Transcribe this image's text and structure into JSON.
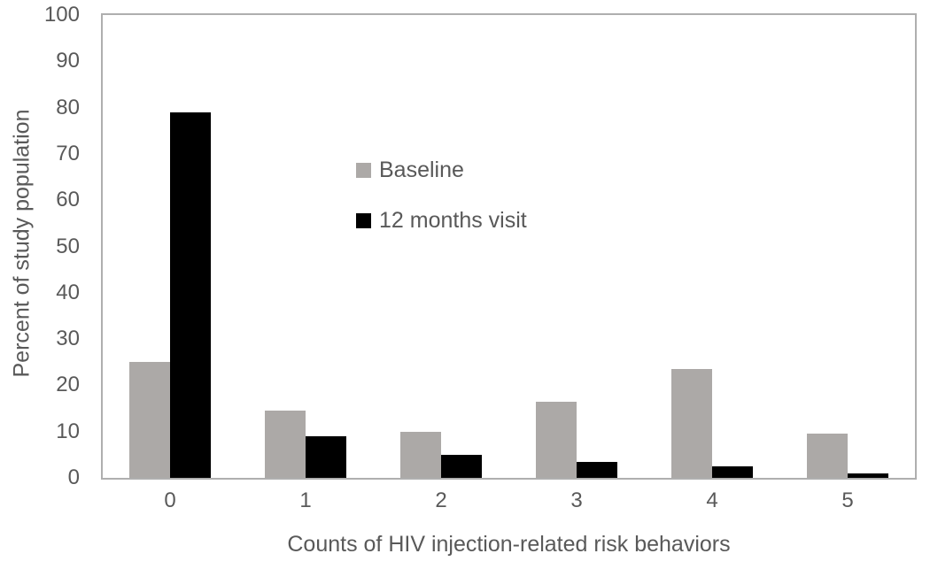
{
  "colors": {
    "text": "#595959",
    "axis_border": "#AFAFAF",
    "background": "#ffffff"
  },
  "chart_data": {
    "type": "bar",
    "title": "",
    "xlabel": "Counts of HIV injection-related risk behaviors",
    "ylabel": "Percent of study population",
    "categories": [
      "0",
      "1",
      "2",
      "3",
      "4",
      "5"
    ],
    "series": [
      {
        "name": "Baseline",
        "color": "#ACA9A7",
        "values": [
          25,
          14.5,
          10,
          16.5,
          23.5,
          9.5
        ]
      },
      {
        "name": "12 months visit",
        "color": "#000000",
        "values": [
          79,
          9,
          5,
          3.5,
          2.5,
          1
        ]
      }
    ],
    "ylim": [
      0,
      100
    ],
    "yticks": [
      0,
      10,
      20,
      30,
      40,
      50,
      60,
      70,
      80,
      90,
      100
    ],
    "grid": false,
    "legend_position": "inside-upper-center-left"
  }
}
